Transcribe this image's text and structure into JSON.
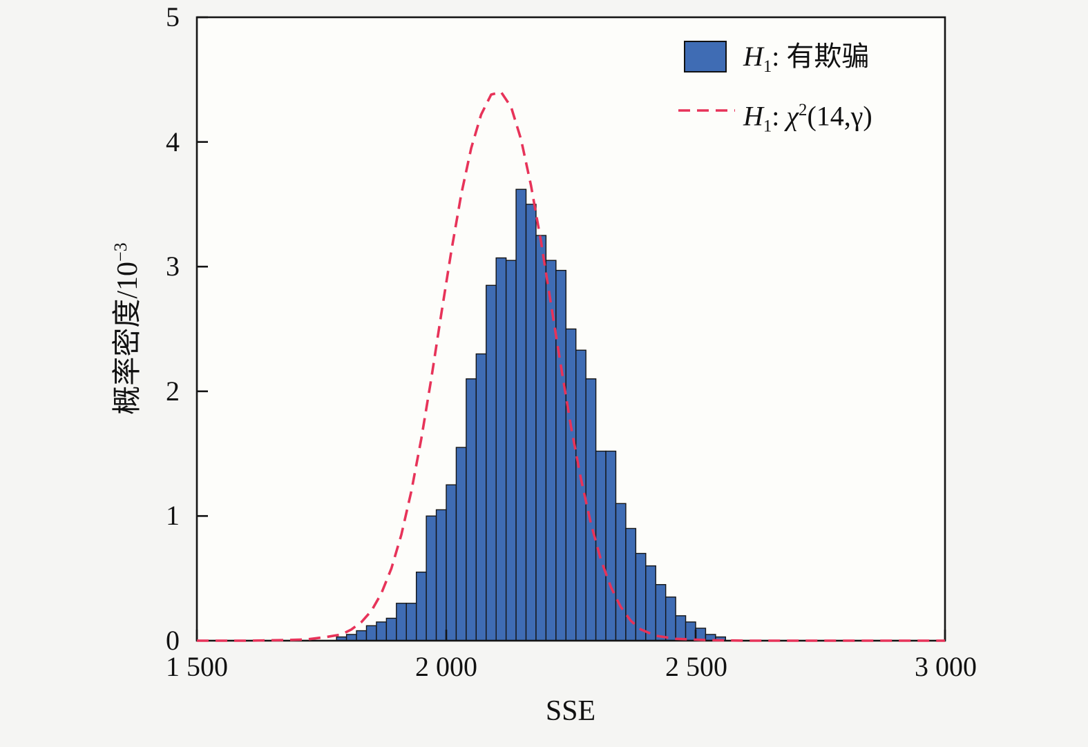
{
  "figure": {
    "xlabel": "SSE",
    "ylabel_main": "概率密度/10",
    "ylabel_sup": "−3",
    "xtick_labels": [
      "1 500",
      "2 000",
      "2 500",
      "3 000"
    ],
    "ytick_labels": [
      "0",
      "1",
      "2",
      "3",
      "4",
      "5"
    ],
    "legend": {
      "item1": {
        "var": "H",
        "sub": "1",
        "text": ": 有欺骗"
      },
      "item2": {
        "var": "H",
        "sub": "1",
        "text": ": ",
        "chi": "χ",
        "chisup": "2",
        "args": "(14,γ)"
      }
    }
  },
  "chart_data": {
    "type": "bar",
    "subtype": "histogram-with-density-curve",
    "title": "",
    "xlabel": "SSE",
    "ylabel": "概率密度/10⁻³",
    "xlim": [
      1500,
      3000
    ],
    "ylim": [
      0,
      5
    ],
    "xticks": [
      1500,
      2000,
      2500,
      3000
    ],
    "yticks": [
      0,
      1,
      2,
      3,
      4,
      5
    ],
    "grid": false,
    "legend_position": "top-right-inside",
    "series": [
      {
        "name": "H₁: 有欺骗",
        "type": "histogram",
        "bin_start": 1780,
        "bin_width": 20,
        "values": [
          0.03,
          0.05,
          0.08,
          0.12,
          0.15,
          0.18,
          0.3,
          0.3,
          0.55,
          1.0,
          1.05,
          1.25,
          1.55,
          2.1,
          2.3,
          2.85,
          3.07,
          3.05,
          3.62,
          3.5,
          3.25,
          3.05,
          2.97,
          2.5,
          2.33,
          2.1,
          1.52,
          1.52,
          1.1,
          0.9,
          0.7,
          0.6,
          0.45,
          0.35,
          0.2,
          0.15,
          0.1,
          0.05,
          0.03
        ]
      },
      {
        "name": "H₁: χ²(14,γ)",
        "type": "dashed-line",
        "x": [
          1500,
          1600,
          1680,
          1720,
          1760,
          1790,
          1810,
          1830,
          1850,
          1870,
          1890,
          1910,
          1930,
          1950,
          1970,
          1990,
          2010,
          2030,
          2050,
          2070,
          2090,
          2110,
          2130,
          2150,
          2170,
          2190,
          2210,
          2230,
          2250,
          2270,
          2290,
          2310,
          2330,
          2350,
          2370,
          2390,
          2420,
          2460,
          2520,
          2600,
          2700,
          2800,
          2900,
          3000
        ],
        "y": [
          0,
          0,
          0.005,
          0.01,
          0.03,
          0.05,
          0.09,
          0.15,
          0.24,
          0.38,
          0.58,
          0.85,
          1.2,
          1.62,
          2.1,
          2.62,
          3.12,
          3.58,
          3.95,
          4.22,
          4.38,
          4.4,
          4.28,
          4.02,
          3.65,
          3.2,
          2.7,
          2.2,
          1.72,
          1.3,
          0.94,
          0.65,
          0.43,
          0.27,
          0.16,
          0.09,
          0.04,
          0.015,
          0.005,
          0,
          0,
          0,
          0,
          0
        ]
      }
    ],
    "colors": {
      "bar": "#3f6cb4",
      "bar_edge": "#141414",
      "curve": "#e73359",
      "axis": "#141414",
      "plot_background": "#fdfdfa"
    }
  }
}
